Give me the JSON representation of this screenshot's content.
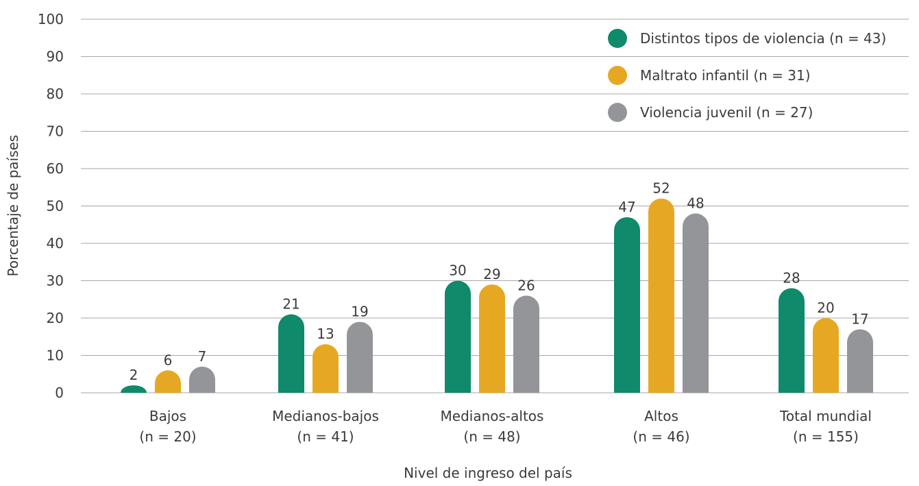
{
  "chart_data": {
    "type": "bar",
    "categories": [
      "Bajos",
      "Medianos-bajos",
      "Medianos-altos",
      "Altos",
      "Total mundial"
    ],
    "category_sublabels": [
      "(n = 20)",
      "(n = 41)",
      "(n = 48)",
      "(n = 46)",
      "(n = 155)"
    ],
    "series": [
      {
        "name": "Distintos tipos de violencia (n = 43)",
        "color": "#0f8a6a",
        "values": [
          2,
          21,
          30,
          47,
          28
        ]
      },
      {
        "name": "Maltrato infantil (n = 31)",
        "color": "#e6a823",
        "values": [
          6,
          13,
          29,
          52,
          20
        ]
      },
      {
        "name": "Violencia juvenil (n = 27)",
        "color": "#939598",
        "values": [
          7,
          19,
          26,
          48,
          17
        ]
      }
    ],
    "xlabel": "Nivel de ingreso del país",
    "ylabel": "Porcentaje de países",
    "ylim": [
      0,
      100
    ],
    "yticks": [
      0,
      10,
      20,
      30,
      40,
      50,
      60,
      70,
      80,
      90,
      100
    ],
    "grid": true,
    "legend_position": "top-right"
  }
}
